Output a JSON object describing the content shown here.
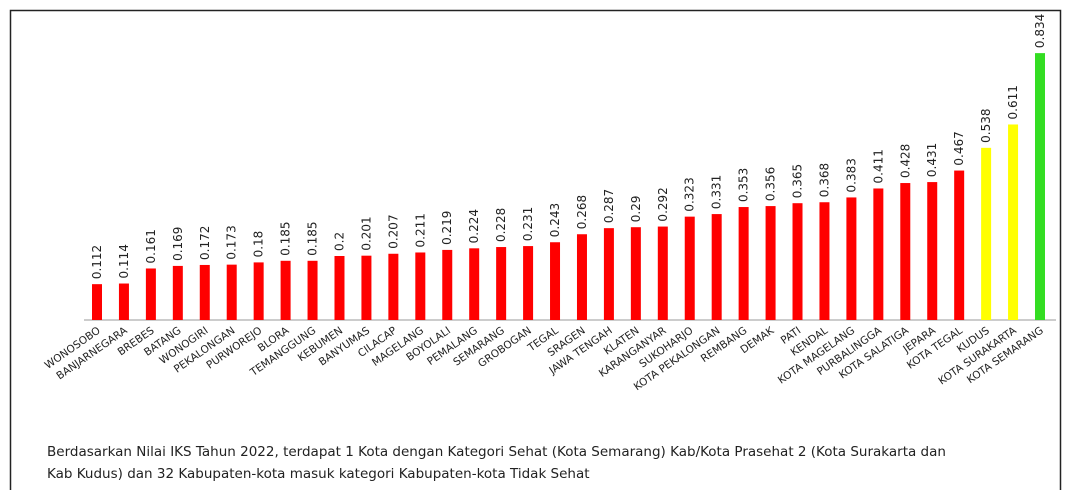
{
  "chart_data": {
    "type": "bar",
    "categories": [
      "WONOSOBO",
      "BANJARNEGARA",
      "BREBES",
      "BATANG",
      "WONOGIRI",
      "PEKALONGAN",
      "PURWOREJO",
      "BLORA",
      "TEMANGGUNG",
      "KEBUMEN",
      "BANYUMAS",
      "CILACAP",
      "MAGELANG",
      "BOYOLALI",
      "PEMALANG",
      "SEMARANG",
      "GROBOGAN",
      "TEGAL",
      "SRAGEN",
      "JAWA TENGAH",
      "KLATEN",
      "KARANGANYAR",
      "SUKOHARJO",
      "KOTA PEKALONGAN",
      "REMBANG",
      "DEMAK",
      "PATI",
      "KENDAL",
      "KOTA MAGELANG",
      "PURBALINGGA",
      "KOTA SALATIGA",
      "JEPARA",
      "KOTA TEGAL",
      "KUDUS",
      "KOTA SURAKARTA",
      "KOTA SEMARANG"
    ],
    "values": [
      0.112,
      0.114,
      0.161,
      0.169,
      0.172,
      0.173,
      0.18,
      0.185,
      0.185,
      0.2,
      0.201,
      0.207,
      0.211,
      0.219,
      0.224,
      0.228,
      0.231,
      0.243,
      0.268,
      0.287,
      0.29,
      0.292,
      0.323,
      0.331,
      0.353,
      0.356,
      0.365,
      0.368,
      0.383,
      0.411,
      0.428,
      0.431,
      0.467,
      0.538,
      0.611,
      0.834
    ],
    "colors": [
      "#ff0000",
      "#ff0000",
      "#ff0000",
      "#ff0000",
      "#ff0000",
      "#ff0000",
      "#ff0000",
      "#ff0000",
      "#ff0000",
      "#ff0000",
      "#ff0000",
      "#ff0000",
      "#ff0000",
      "#ff0000",
      "#ff0000",
      "#ff0000",
      "#ff0000",
      "#ff0000",
      "#ff0000",
      "#ff0000",
      "#ff0000",
      "#ff0000",
      "#ff0000",
      "#ff0000",
      "#ff0000",
      "#ff0000",
      "#ff0000",
      "#ff0000",
      "#ff0000",
      "#ff0000",
      "#ff0000",
      "#ff0000",
      "#ff0000",
      "#ffff00",
      "#ffff00",
      "#33dd22"
    ],
    "caption": [
      "Berdasarkan Nilai IKS Tahun 2022, terdapat 1 Kota dengan Kategori Sehat (Kota Semarang) Kab/Kota Prasehat 2 (Kota Surakarta dan",
      "Kab Kudus) dan 32 Kabupaten-kota masuk kategori Kabupaten-kota Tidak Sehat"
    ]
  }
}
